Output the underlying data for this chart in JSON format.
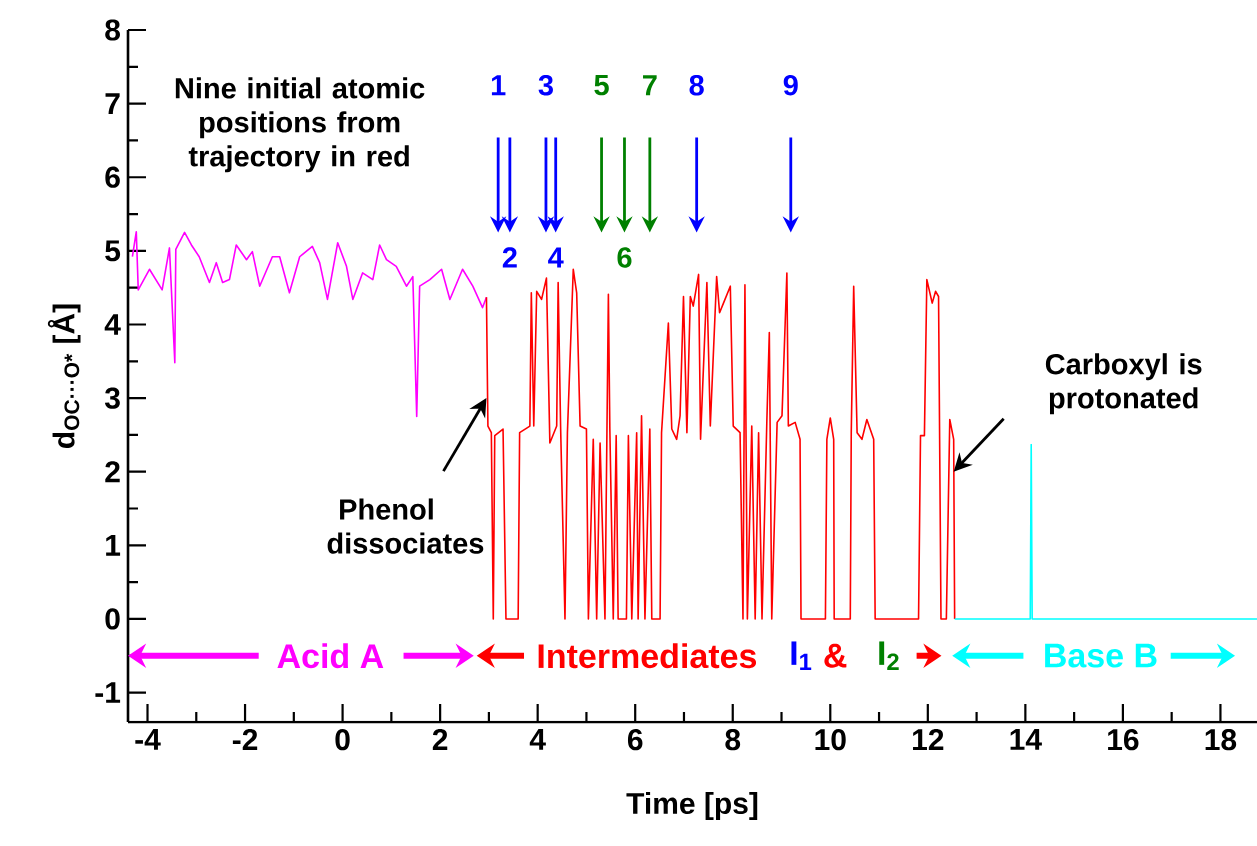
{
  "chart_data": {
    "type": "line",
    "xlabel": "Time [ps]",
    "ylabel": "d$_{OC···O*}$  [Å]",
    "xlim": [
      -4.4,
      18.75
    ],
    "ylim": [
      -1.4,
      8
    ],
    "xticks": [
      -4,
      {
        "value": -3,
        "label": null
      },
      -2,
      {
        "value": -1,
        "label": null
      },
      0,
      {
        "value": 1,
        "label": null
      },
      2,
      {
        "value": 3,
        "label": null
      },
      4,
      {
        "value": 5,
        "label": null
      },
      6,
      {
        "value": 7,
        "label": null
      },
      8,
      {
        "value": 9,
        "label": null
      },
      10,
      {
        "value": 11,
        "label": null
      },
      12,
      {
        "value": 13,
        "label": null
      },
      14,
      {
        "value": 15,
        "label": null
      },
      16,
      {
        "value": 17,
        "label": null
      },
      18
    ],
    "yticks": [
      -1,
      {
        "value": -0.5,
        "label": null
      },
      0,
      {
        "value": 0.5,
        "label": null
      },
      1,
      {
        "value": 1.5,
        "label": null
      },
      2,
      {
        "value": 2.5,
        "label": null
      },
      3,
      {
        "value": 3.5,
        "label": null
      },
      4,
      {
        "value": 4.5,
        "label": null
      },
      5,
      {
        "value": 5.5,
        "label": null
      },
      6,
      {
        "value": 6.5,
        "label": null
      },
      7,
      {
        "value": 7.5,
        "label": null
      },
      8
    ],
    "series": [
      {
        "color": "#ff00ff",
        "x": [
          -4.31,
          -4.23,
          -4.19,
          -3.96,
          -3.7,
          -3.55,
          -3.44,
          -3.42,
          -3.24,
          -3.1,
          -2.94,
          -2.73,
          -2.59,
          -2.46,
          -2.32,
          -2.18,
          -1.97,
          -1.85,
          -1.7,
          -1.44,
          -1.29,
          -1.09,
          -0.88,
          -0.62,
          -0.47,
          -0.31,
          -0.1,
          0.08,
          0.21,
          0.41,
          0.62,
          0.76,
          0.9,
          1.1,
          1.31,
          1.44,
          1.52,
          1.58,
          1.79,
          2.03,
          2.2,
          2.46,
          2.67,
          2.87,
          2.95
        ],
        "values": [
          4.92,
          5.26,
          4.47,
          4.75,
          4.47,
          5.04,
          3.48,
          5.02,
          5.25,
          5.08,
          4.92,
          4.57,
          4.84,
          4.57,
          4.61,
          5.08,
          4.88,
          4.99,
          4.52,
          4.92,
          4.92,
          4.43,
          4.92,
          5.06,
          4.84,
          4.34,
          5.11,
          4.79,
          4.34,
          4.7,
          4.61,
          5.08,
          4.88,
          4.79,
          4.52,
          4.65,
          2.75,
          4.52,
          4.61,
          4.75,
          4.34,
          4.75,
          4.52,
          4.23,
          4.37
        ]
      },
      {
        "color": "#ff0000",
        "x": [
          2.95,
          2.98,
          3.05,
          3.09,
          3.12,
          3.29,
          3.35,
          3.6,
          3.63,
          3.84,
          3.87,
          3.92,
          3.98,
          4.08,
          4.18,
          4.25,
          4.39,
          4.42,
          4.47,
          4.56,
          4.61,
          4.73,
          4.8,
          4.87,
          5.0,
          5.04,
          5.14,
          5.21,
          5.28,
          5.38,
          5.45,
          5.48,
          5.55,
          5.61,
          5.65,
          5.82,
          5.86,
          5.93,
          6.03,
          6.06,
          6.13,
          6.2,
          6.3,
          6.34,
          6.51,
          6.54,
          6.68,
          6.75,
          6.85,
          6.92,
          6.99,
          7.06,
          7.13,
          7.19,
          7.3,
          7.34,
          7.47,
          7.54,
          7.67,
          7.73,
          7.81,
          7.95,
          8.01,
          8.15,
          8.21,
          8.25,
          8.3,
          8.39,
          8.46,
          8.53,
          8.6,
          8.7,
          8.75,
          8.8,
          8.91,
          9.01,
          9.11,
          9.14,
          9.28,
          9.38,
          9.4,
          9.9,
          9.93,
          10.0,
          10.07,
          10.08,
          10.41,
          10.43,
          10.48,
          10.55,
          10.65,
          10.75,
          10.89,
          10.92,
          11.81,
          11.85,
          11.93,
          11.98,
          12.09,
          12.16,
          12.22,
          12.27,
          12.38,
          12.45,
          12.53,
          12.55
        ],
        "values": [
          4.37,
          2.62,
          2.53,
          0,
          2.49,
          2.58,
          0,
          0,
          2.53,
          2.62,
          4.43,
          2.62,
          4.45,
          4.34,
          4.63,
          2.39,
          2.62,
          4.57,
          2.62,
          0,
          2.53,
          4.75,
          4.43,
          2.62,
          2.58,
          0,
          2.44,
          0,
          2.39,
          0,
          4.41,
          2.58,
          0,
          2.49,
          0,
          0,
          2.49,
          0,
          2.53,
          0,
          2.76,
          0,
          2.58,
          0,
          0,
          2.53,
          4.02,
          2.58,
          2.44,
          2.76,
          4.38,
          2.53,
          4.38,
          4.25,
          4.68,
          2.44,
          4.57,
          2.62,
          4.65,
          4.16,
          4.29,
          4.52,
          2.62,
          2.53,
          0,
          4.54,
          0,
          2.62,
          0,
          2.53,
          0,
          2.71,
          3.89,
          0,
          2.67,
          2.76,
          4.7,
          2.62,
          2.67,
          2.44,
          0,
          0,
          2.44,
          2.73,
          2.44,
          0,
          0,
          2.53,
          4.52,
          2.53,
          2.44,
          2.71,
          2.44,
          0,
          0,
          2.49,
          2.49,
          4.61,
          4.29,
          4.45,
          4.38,
          0,
          0,
          2.71,
          2.44,
          0
        ]
      },
      {
        "color": "#00ffff",
        "x": [
          12.55,
          14.1,
          14.12,
          14.14,
          18.75
        ],
        "values": [
          0,
          0,
          2.37,
          0,
          0
        ]
      }
    ],
    "annotations": [
      "Nine initial atomic positions from trajectory in red",
      "1",
      "2",
      "3",
      "4",
      "5",
      "6",
      "7",
      "8",
      "9",
      "Phenol dissociates",
      "Carboxyl is protonated",
      "Acid A",
      "Intermediates",
      "I$_{1}$",
      "&",
      "I$_{2}$",
      "Base B"
    ]
  }
}
